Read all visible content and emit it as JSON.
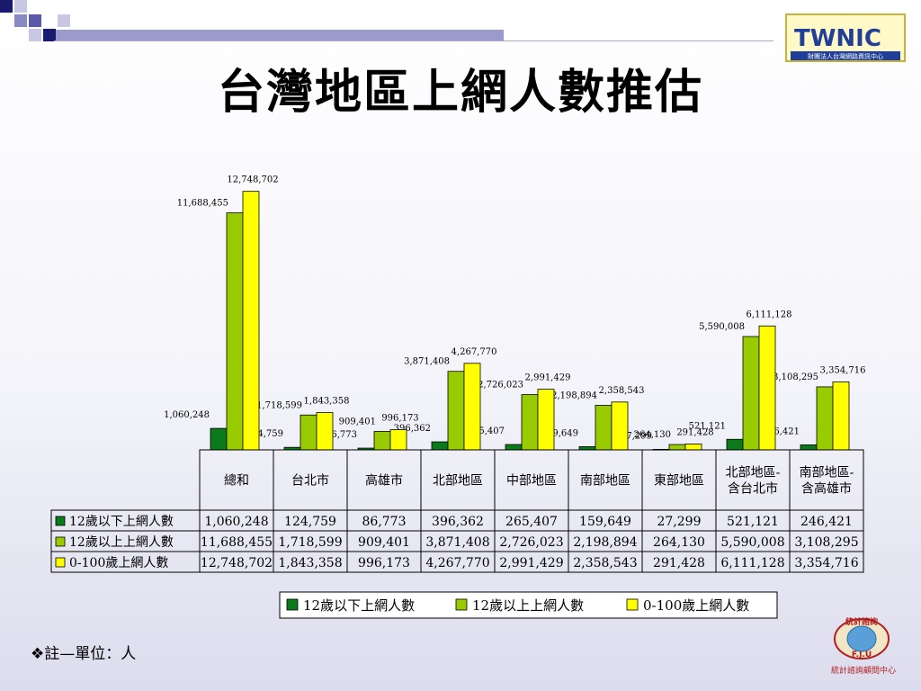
{
  "slide": {
    "title": "台灣地區上網人數推估",
    "note_symbol": "❖",
    "note": "註—單位：人"
  },
  "logos": {
    "top_right_text": "TWNIC",
    "top_right_caption": "財團法人台灣網路資訊中心",
    "bottom_right_text": "F.J.U",
    "bottom_right_caption": "統計諮詢顧問中心"
  },
  "colors": {
    "series_dark": "#0a7a1a",
    "series_green": "#99cc00",
    "series_yellow": "#ffff00",
    "logo_blue": "#1f3f99"
  },
  "chart_data": {
    "type": "bar",
    "categories": [
      "總和",
      "台北市",
      "高雄市",
      "北部地區",
      "中部地區",
      "南部地區",
      "東部地區",
      "北部地區-含台北市",
      "南部地區-含高雄市"
    ],
    "category_lines": [
      [
        "總和"
      ],
      [
        "台北市"
      ],
      [
        "高雄市"
      ],
      [
        "北部地區"
      ],
      [
        "中部地區"
      ],
      [
        "南部地區"
      ],
      [
        "東部地區"
      ],
      [
        "北部地區-",
        "含台北市"
      ],
      [
        "南部地區-",
        "含高雄市"
      ]
    ],
    "series": [
      {
        "name": "12歲以下上網人數",
        "color": "#0a7a1a",
        "values": [
          1060248,
          124759,
          86773,
          396362,
          265407,
          159649,
          27299,
          521121,
          246421
        ],
        "labels": [
          "1,060,248",
          "124,759",
          "86,773",
          "396,362",
          "265,407",
          "159,649",
          "27,299",
          "521,121",
          "246,421"
        ]
      },
      {
        "name": "12歲以上上網人數",
        "color": "#99cc00",
        "values": [
          11688455,
          1718599,
          909401,
          3871408,
          2726023,
          2198894,
          264130,
          5590008,
          3108295
        ],
        "labels": [
          "11,688,455",
          "1,718,599",
          "909,401",
          "3,871,408",
          "2,726,023",
          "2,198,894",
          "264,130",
          "5,590,008",
          "3,108,295"
        ]
      },
      {
        "name": "0-100歲上網人數",
        "color": "#ffff00",
        "values": [
          12748702,
          1843358,
          996173,
          4267770,
          2991429,
          2358543,
          291428,
          6111128,
          3354716
        ],
        "labels": [
          "12,748,702",
          "1,843,358",
          "996,173",
          "4,267,770",
          "2,991,429",
          "2,358,543",
          "291,428",
          "6,111,128",
          "3,354,716"
        ]
      }
    ],
    "ylim": [
      0,
      13000000
    ],
    "grid": false,
    "legend": "bottom-right",
    "data_table": true
  }
}
